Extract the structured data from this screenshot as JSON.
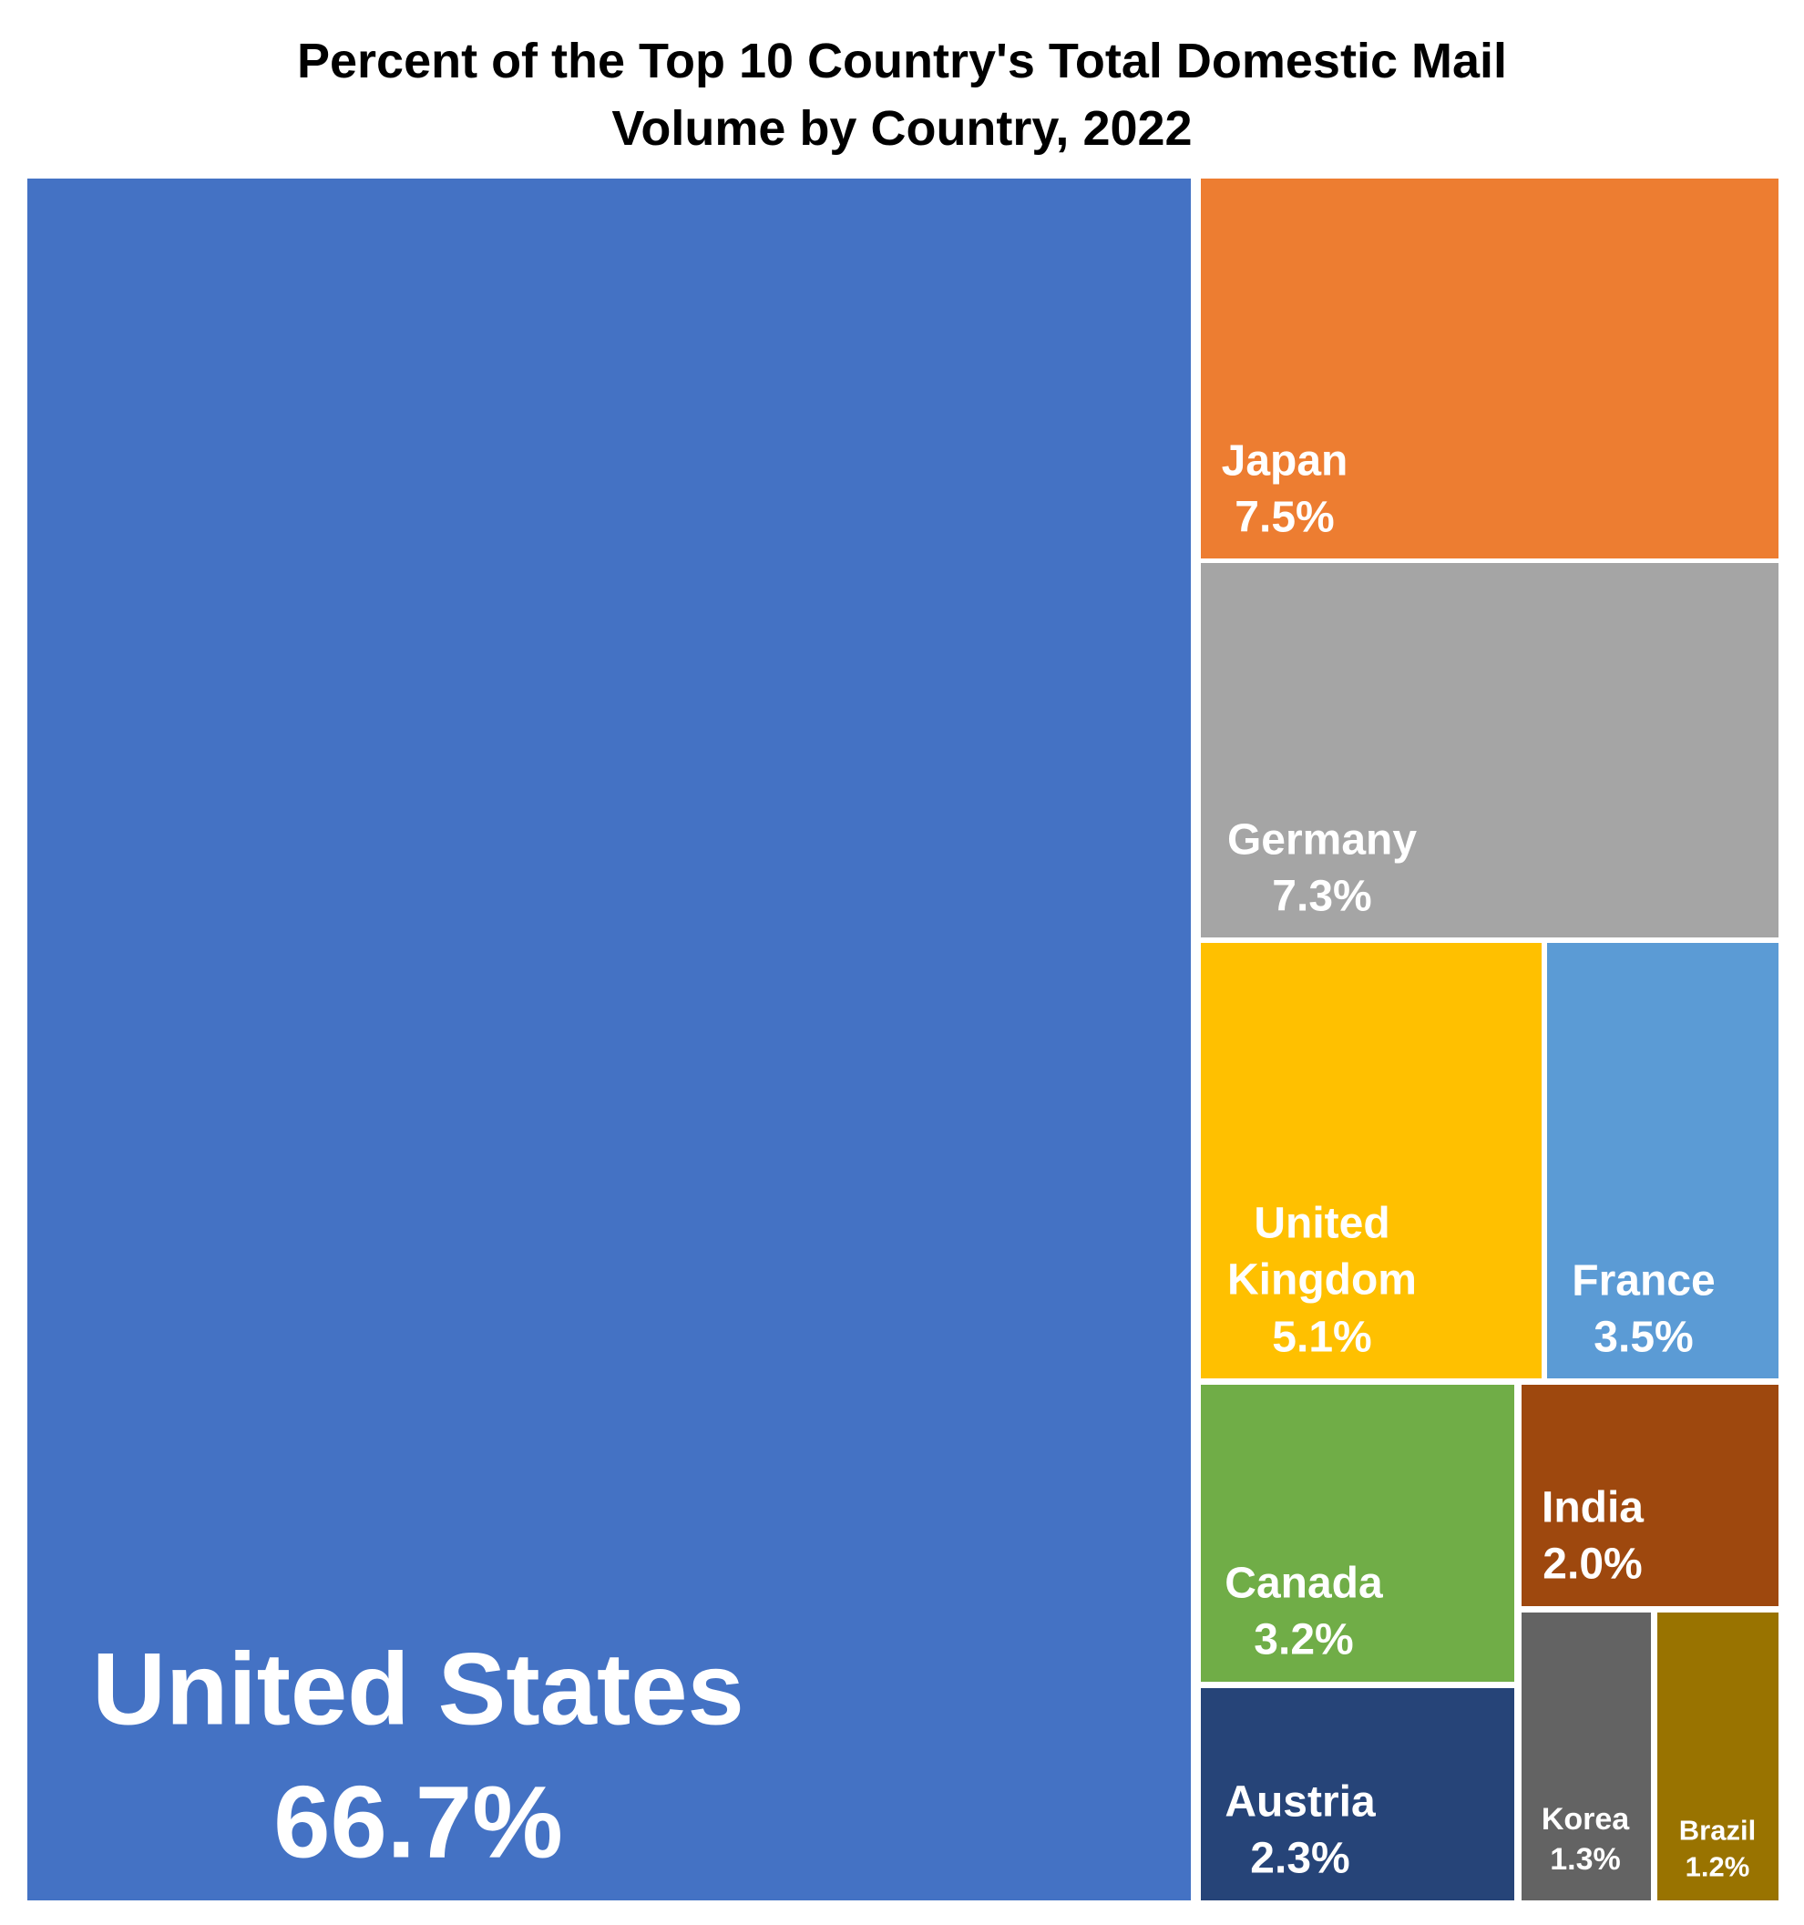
{
  "chart_data": {
    "type": "treemap",
    "title": "Percent of the Top 10 Country's Total Domestic Mail Volume by Country, 2022",
    "title_lines": [
      "Percent of the Top 10 Country's Total Domestic Mail",
      "Volume by Country, 2022"
    ],
    "items": [
      {
        "name": "United States",
        "name_lines": [
          "United States"
        ],
        "value": 66.7,
        "label": "66.7%",
        "color": "#4472C4"
      },
      {
        "name": "Japan",
        "name_lines": [
          "Japan"
        ],
        "value": 7.5,
        "label": "7.5%",
        "color": "#ED7D31"
      },
      {
        "name": "Germany",
        "name_lines": [
          "Germany"
        ],
        "value": 7.3,
        "label": "7.3%",
        "color": "#A5A5A5"
      },
      {
        "name": "United Kingdom",
        "name_lines": [
          "United",
          "Kingdom"
        ],
        "value": 5.1,
        "label": "5.1%",
        "color": "#FFC000"
      },
      {
        "name": "France",
        "name_lines": [
          "France"
        ],
        "value": 3.5,
        "label": "3.5%",
        "color": "#5B9BD5"
      },
      {
        "name": "Canada",
        "name_lines": [
          "Canada"
        ],
        "value": 3.2,
        "label": "3.2%",
        "color": "#70AD47"
      },
      {
        "name": "Austria",
        "name_lines": [
          "Austria"
        ],
        "value": 2.3,
        "label": "2.3%",
        "color": "#264478"
      },
      {
        "name": "India",
        "name_lines": [
          "India"
        ],
        "value": 2.0,
        "label": "2.0%",
        "color": "#9E480E"
      },
      {
        "name": "Korea",
        "name_lines": [
          "Korea"
        ],
        "value": 1.3,
        "label": "1.3%",
        "color": "#636363"
      },
      {
        "name": "Brazil",
        "name_lines": [
          "Brazil"
        ],
        "value": 1.2,
        "label": "1.2%",
        "color": "#997300"
      }
    ]
  }
}
